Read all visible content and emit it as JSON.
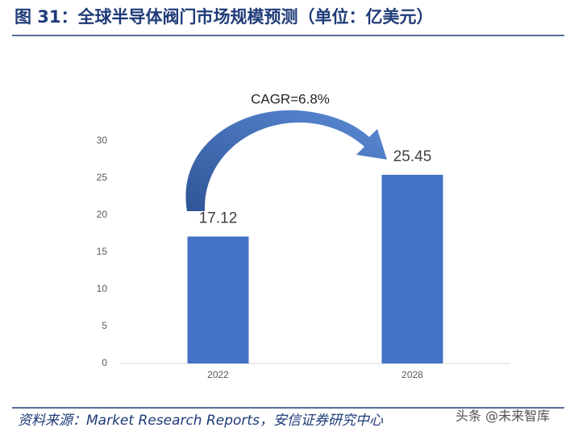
{
  "chart_data": {
    "type": "bar",
    "title": "图 31：全球半导体阀门市场规模预测（单位：亿美元）",
    "annotation": "CAGR=6.8%",
    "categories": [
      "2022",
      "2028"
    ],
    "values": [
      17.12,
      25.45
    ],
    "color": "#4472c4",
    "ylim": [
      0,
      30
    ],
    "yticks": [
      0,
      5,
      10,
      15,
      20,
      25,
      30
    ],
    "grid": false,
    "source": "资料来源：Market Research Reports，安信证券研究中心",
    "watermark": "头条 @未来智库"
  }
}
